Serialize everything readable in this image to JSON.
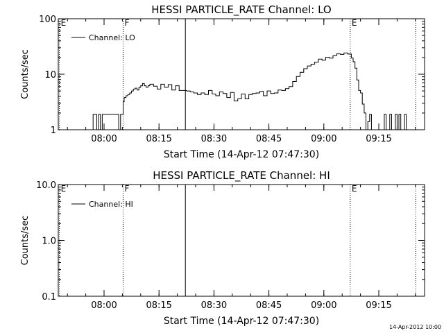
{
  "footer_timestamp": "14-Apr-2012 10:00",
  "chart_data": [
    {
      "type": "line",
      "title": "HESSI PARTICLE_RATE Channel: LO",
      "ylabel": "Counts/sec",
      "xlabel": "Start Time (14-Apr-12 07:47:30)",
      "x_unit": "minutes after 07:47:30",
      "xlim": [
        0,
        100
      ],
      "ylim": [
        1,
        100
      ],
      "y_scale": "log",
      "y_ticks": [
        {
          "value": 1,
          "label": "1"
        },
        {
          "value": 10,
          "label": "10"
        },
        {
          "value": 100,
          "label": "100"
        }
      ],
      "x_ticks": [
        {
          "value": 12.5,
          "label": "08:00"
        },
        {
          "value": 27.5,
          "label": "08:15"
        },
        {
          "value": 42.5,
          "label": "08:30"
        },
        {
          "value": 57.5,
          "label": "08:45"
        },
        {
          "value": 72.5,
          "label": "09:00"
        },
        {
          "value": 87.5,
          "label": "09:15"
        }
      ],
      "legend": {
        "label": "Channel: LO",
        "placement": "top-left"
      },
      "markers": [
        {
          "x": 0.3,
          "label": "E",
          "style": "dotted"
        },
        {
          "x": 17.7,
          "label": "F",
          "style": "dotted"
        },
        {
          "x": 34.7,
          "label": "",
          "style": "solid"
        },
        {
          "x": 79.7,
          "label": "E",
          "style": "dotted"
        },
        {
          "x": 97.6,
          "label": "",
          "style": "dotted"
        }
      ],
      "series": [
        {
          "name": "Channel: LO",
          "x": [
            9.0,
            9.5,
            10.0,
            10.5,
            11.0,
            11.5,
            12.0,
            12.5,
            13.0,
            13.5,
            14.0,
            14.5,
            15.0,
            15.5,
            16.0,
            16.5,
            17.0,
            17.5,
            17.7,
            18.0,
            18.5,
            19.0,
            19.5,
            20.0,
            20.5,
            21.0,
            21.5,
            22.0,
            22.5,
            23.0,
            23.5,
            24.0,
            24.5,
            25.0,
            26.0,
            27.0,
            28.0,
            29.0,
            30.0,
            31.0,
            32.0,
            33.0,
            34.0,
            35.0,
            36.0,
            37.0,
            38.0,
            39.0,
            40.0,
            41.0,
            42.0,
            43.0,
            44.0,
            45.0,
            46.0,
            47.0,
            48.0,
            49.0,
            50.0,
            51.0,
            52.0,
            53.0,
            54.0,
            55.0,
            56.0,
            57.0,
            58.0,
            59.0,
            60.0,
            61.0,
            62.0,
            63.0,
            64.0,
            65.0,
            66.0,
            67.0,
            68.0,
            69.0,
            70.0,
            71.0,
            72.0,
            73.0,
            74.0,
            75.0,
            76.0,
            77.0,
            78.0,
            79.0,
            80.0,
            80.5,
            81.0,
            81.5,
            82.0,
            82.5,
            83.0,
            83.5,
            84.0,
            84.5,
            85.0,
            85.5,
            86.0,
            86.5,
            87.0,
            87.5,
            88.0,
            88.5,
            89.0,
            89.5,
            90.0,
            90.5,
            91.0,
            91.5,
            92.0,
            92.5,
            93.0,
            93.5,
            94.0,
            94.5,
            95.0
          ],
          "y": [
            1.0,
            1.9,
            1.9,
            1.0,
            1.9,
            1.0,
            1.9,
            1.9,
            1.9,
            1.9,
            1.9,
            1.9,
            1.9,
            1.9,
            1.9,
            1.0,
            1.9,
            1.9,
            3.2,
            3.8,
            4.1,
            4.3,
            4.6,
            5.0,
            5.4,
            5.6,
            5.2,
            5.8,
            6.2,
            6.8,
            6.2,
            5.8,
            6.2,
            6.6,
            6.1,
            5.4,
            6.6,
            5.8,
            6.5,
            5.2,
            6.2,
            5.1,
            5.1,
            5.0,
            4.8,
            4.6,
            4.3,
            4.6,
            4.3,
            5.1,
            4.4,
            4.1,
            4.8,
            4.5,
            3.8,
            4.7,
            3.3,
            3.6,
            4.4,
            3.6,
            4.3,
            4.5,
            4.6,
            4.9,
            4.1,
            5.0,
            4.5,
            4.6,
            5.2,
            5.1,
            5.5,
            6.0,
            7.4,
            9.1,
            10.8,
            12.6,
            14.1,
            15.2,
            16.5,
            18.7,
            17.9,
            20.2,
            19.5,
            21.6,
            23.3,
            22.8,
            24.1,
            23.1,
            19.6,
            16.8,
            12.9,
            7.9,
            5.1,
            4.6,
            2.9,
            2.0,
            1.0,
            1.4,
            1.9,
            1.0,
            1.0,
            1.0,
            1.0,
            1.0,
            1.0,
            1.0,
            1.9,
            1.0,
            1.0,
            1.9,
            1.0,
            1.0,
            1.9,
            1.0,
            1.9,
            1.0,
            1.0,
            1.9,
            1.0
          ]
        }
      ]
    },
    {
      "type": "line",
      "title": "HESSI PARTICLE_RATE Channel: HI",
      "ylabel": "Counts/sec",
      "xlabel": "Start Time (14-Apr-12 07:47:30)",
      "x_unit": "minutes after 07:47:30",
      "xlim": [
        0,
        100
      ],
      "ylim": [
        0.1,
        10
      ],
      "y_scale": "log",
      "y_ticks": [
        {
          "value": 0.1,
          "label": "0.1"
        },
        {
          "value": 1,
          "label": "1.0"
        },
        {
          "value": 10,
          "label": "10.0"
        }
      ],
      "x_ticks": [
        {
          "value": 12.5,
          "label": "08:00"
        },
        {
          "value": 27.5,
          "label": "08:15"
        },
        {
          "value": 42.5,
          "label": "08:30"
        },
        {
          "value": 57.5,
          "label": "08:45"
        },
        {
          "value": 72.5,
          "label": "09:00"
        },
        {
          "value": 87.5,
          "label": "09:15"
        }
      ],
      "legend": {
        "label": "Channel: HI",
        "placement": "top-left"
      },
      "markers": [
        {
          "x": 0.3,
          "label": "E",
          "style": "dotted"
        },
        {
          "x": 17.7,
          "label": "F",
          "style": "dotted"
        },
        {
          "x": 34.7,
          "label": "",
          "style": "solid"
        },
        {
          "x": 79.7,
          "label": "E",
          "style": "dotted"
        },
        {
          "x": 97.6,
          "label": "",
          "style": "dotted"
        }
      ],
      "series": [
        {
          "name": "Channel: HI",
          "x": [],
          "y": []
        }
      ]
    }
  ]
}
